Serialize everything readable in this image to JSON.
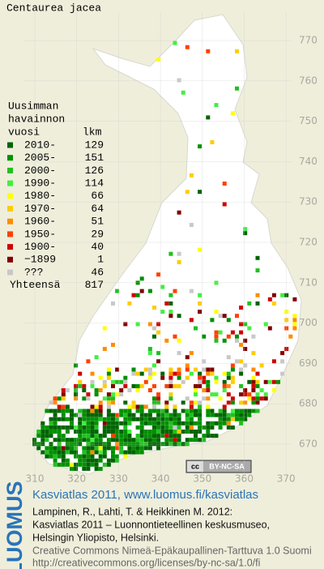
{
  "map": {
    "title": "Centaurea jacea",
    "legend": {
      "heading": [
        "Uusimman",
        "havainnon",
        "vuosi"
      ],
      "count_heading": "lkm",
      "items": [
        {
          "label": "2010-",
          "count": "129",
          "color": "#006400"
        },
        {
          "label": "2005-",
          "count": "151",
          "color": "#009000"
        },
        {
          "label": "2000-",
          "count": "126",
          "color": "#20c020"
        },
        {
          "label": "1990-",
          "count": "114",
          "color": "#40f040"
        },
        {
          "label": "1980-",
          "count": "66",
          "color": "#ffff00"
        },
        {
          "label": "1970-",
          "count": "64",
          "color": "#ffcc00"
        },
        {
          "label": "1960-",
          "count": "51",
          "color": "#ff8c00"
        },
        {
          "label": "1950-",
          "count": "29",
          "color": "#ff4000"
        },
        {
          "label": "1900-",
          "count": "40",
          "color": "#d00000"
        },
        {
          "label": "−1899",
          "count": "1",
          "color": "#800000"
        },
        {
          "label": "???",
          "count": "46",
          "color": "#c8c8c8"
        }
      ],
      "total_label": "Yhteensä",
      "total": "817"
    },
    "xticks": [
      310,
      320,
      330,
      340,
      350,
      360,
      370
    ],
    "yticks": [
      770,
      760,
      750,
      740,
      730,
      720,
      710,
      700,
      690,
      680,
      670
    ],
    "cc_badge": [
      "cc",
      "BY-NC-SA"
    ]
  },
  "footer": {
    "logo": "LUOMUS",
    "link": "Kasviatlas 2011, www.luomus.fi/kasviatlas",
    "citation": [
      "Lampinen, R., Lahti, T. & Heikkinen M. 2012:",
      "Kasviatlas 2011 – Luonnontieteellinen keskusmuseo,",
      "Helsingin Yliopisto, Helsinki."
    ],
    "license": [
      "Creative Commons Nimeä-Epäkaupallinen-Tarttuva 1.0 Suomi",
      "http://creativecommons.org/licenses/by-nc-sa/1.0/fi"
    ]
  }
}
